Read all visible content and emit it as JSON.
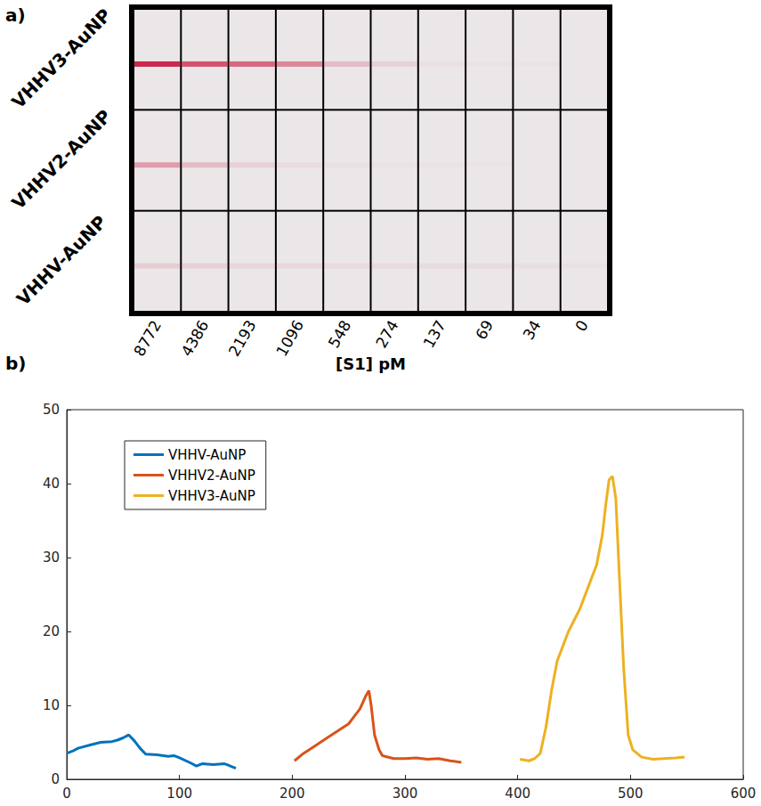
{
  "panel_a": {
    "label": "a)",
    "axis_label": "[S1] pM",
    "columns": [
      8772,
      4386,
      2193,
      1096,
      548,
      274,
      137,
      69,
      34,
      0
    ],
    "rows": [
      {
        "label": "VHHV3-AuNP",
        "intensity": [
          0.9,
          0.7,
          0.6,
          0.45,
          0.2,
          0.1,
          0.03,
          0.02,
          0.02,
          0
        ]
      },
      {
        "label": "VHHV2-AuNP",
        "intensity": [
          0.35,
          0.2,
          0.1,
          0.05,
          0.03,
          0.02,
          0.02,
          0.01,
          0,
          0
        ]
      },
      {
        "label": "VHHV-AuNP",
        "intensity": [
          0.12,
          0.1,
          0.08,
          0.07,
          0.06,
          0.06,
          0.05,
          0.05,
          0.04,
          0.03
        ]
      }
    ]
  },
  "chart_data": {
    "panel_label": "b)",
    "type": "line",
    "xlim": [
      0,
      600
    ],
    "xticks": [
      0,
      100,
      200,
      300,
      400,
      500,
      600
    ],
    "ylim": [
      0,
      50
    ],
    "yticks": [
      0,
      10,
      20,
      30,
      40,
      50
    ],
    "grid": false,
    "legend": "upper left",
    "series": [
      {
        "name": "VHHV-AuNP",
        "color": "#0072bd",
        "x": [
          0,
          5,
          10,
          20,
          30,
          40,
          45,
          50,
          55,
          60,
          65,
          70,
          80,
          90,
          95,
          100,
          110,
          115,
          120,
          130,
          140,
          145,
          150
        ],
        "values": [
          3.5,
          3.8,
          4.2,
          4.6,
          5,
          5.1,
          5.3,
          5.6,
          6.0,
          5.2,
          4.2,
          3.4,
          3.3,
          3.1,
          3.2,
          2.9,
          2.2,
          1.8,
          2.1,
          2.0,
          2.1,
          1.8,
          1.5
        ]
      },
      {
        "name": "VHHV2-AuNP",
        "color": "#d95319",
        "x": [
          202,
          210,
          220,
          230,
          240,
          250,
          255,
          260,
          265,
          268,
          270,
          273,
          277,
          280,
          290,
          300,
          310,
          320,
          330,
          340,
          350
        ],
        "values": [
          2.5,
          3.5,
          4.5,
          5.5,
          6.5,
          7.5,
          8.5,
          9.5,
          11.2,
          12,
          10,
          6,
          4,
          3.2,
          2.8,
          2.8,
          2.9,
          2.7,
          2.8,
          2.5,
          2.3
        ]
      },
      {
        "name": "VHHV3-AuNP",
        "color": "#edb120",
        "x": [
          402,
          410,
          415,
          420,
          425,
          430,
          435,
          440,
          445,
          450,
          455,
          460,
          465,
          470,
          475,
          478,
          481,
          484,
          487,
          490,
          494,
          498,
          502,
          510,
          520,
          530,
          540,
          548
        ],
        "values": [
          2.7,
          2.5,
          2.8,
          3.5,
          7,
          12,
          16,
          18,
          20,
          21.5,
          23,
          25,
          27,
          29,
          33,
          37,
          40.5,
          41,
          38,
          28,
          15,
          6,
          4,
          3,
          2.7,
          2.8,
          2.9,
          3
        ]
      }
    ]
  }
}
